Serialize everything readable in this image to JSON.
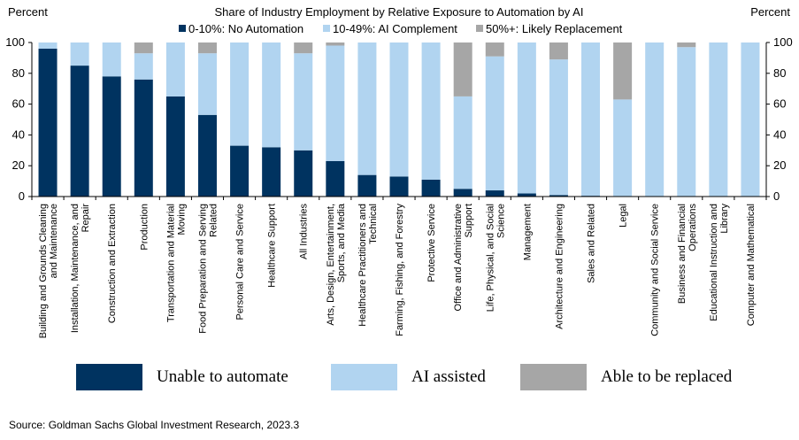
{
  "chart_data": {
    "type": "bar",
    "stacked": true,
    "title": "Share of Industry Employment by Relative Exposure to Automation by AI",
    "ylabel_left": "Percent",
    "ylabel_right": "Percent",
    "ylim": [
      0,
      100
    ],
    "yticks": [
      0,
      20,
      40,
      60,
      80,
      100
    ],
    "categories": [
      "Building and Grounds Cleaning and Maintenance",
      "Installation, Maintenance, and Repair",
      "Construction and Extraction",
      "Production",
      "Transportation and Material Moving",
      "Food Preparation and Serving Related",
      "Personal Care and Service",
      "Healthcare Support",
      "All Industries",
      "Arts, Design, Entertainment, Sports, and Media",
      "Healthcare Practitioners and Technical",
      "Farming, Fishing, and Forestry",
      "Protective Service",
      "Office and Administrative Support",
      "Life, Physical, and Social Science",
      "Management",
      "Architecture and Engineering",
      "Sales and Related",
      "Legal",
      "Community and Social Service",
      "Business and Financial Operations",
      "Educational Instruction and Library",
      "Computer and Mathematical"
    ],
    "category_lines": [
      [
        "Building and Grounds Cleaning",
        "and Maintenance"
      ],
      [
        "Installation, Maintenance, and",
        "Repair"
      ],
      [
        "Construction and Extraction"
      ],
      [
        "Production"
      ],
      [
        "Transportation and Material",
        "Moving"
      ],
      [
        "Food Preparation and Serving",
        "Related"
      ],
      [
        "Personal Care and Service"
      ],
      [
        "Healthcare Support"
      ],
      [
        "All Industries"
      ],
      [
        "Arts, Design, Entertainment,",
        "Sports, and Media"
      ],
      [
        "Healthcare Practitioners and",
        "Technical"
      ],
      [
        "Farming, Fishing, and Forestry"
      ],
      [
        "Protective Service"
      ],
      [
        "Office and Administrative",
        "Support"
      ],
      [
        "Life, Physical, and Social",
        "Science"
      ],
      [
        "Management"
      ],
      [
        "Architecture and Engineering"
      ],
      [
        "Sales and Related"
      ],
      [
        "Legal"
      ],
      [
        "Community and Social Service"
      ],
      [
        "Business and Financial",
        "Operations"
      ],
      [
        "Educational Instruction and",
        "Library"
      ],
      [
        "Computer and Mathematical"
      ]
    ],
    "series": [
      {
        "name": "0-10%: No Automation",
        "color": "#003360",
        "values": [
          96,
          85,
          78,
          76,
          65,
          53,
          33,
          32,
          30,
          23,
          14,
          13,
          11,
          5,
          4,
          2,
          1,
          0.5,
          0,
          0,
          0,
          0,
          0
        ]
      },
      {
        "name": "10-49%: AI Complement",
        "color": "#b1d4f0",
        "values": [
          4,
          15,
          22,
          17,
          35,
          40,
          67,
          68,
          63,
          75,
          86,
          87,
          89,
          60,
          87,
          98,
          88,
          99.5,
          63,
          100,
          97,
          100,
          100
        ]
      },
      {
        "name": "50%+: Likely Replacement",
        "color": "#a6a6a6",
        "values": [
          0,
          0,
          0,
          7,
          0,
          7,
          0,
          0,
          7,
          2,
          0,
          0,
          0,
          35,
          9,
          0,
          11,
          0,
          37,
          0,
          3,
          0,
          0
        ]
      }
    ]
  },
  "bottom_legend": [
    {
      "label": "Unable to automate",
      "color": "#003360"
    },
    {
      "label": "AI assisted",
      "color": "#b1d4f0"
    },
    {
      "label": "Able to be replaced",
      "color": "#a6a6a6"
    }
  ],
  "source": "Source: Goldman Sachs Global Investment Research, 2023.3"
}
